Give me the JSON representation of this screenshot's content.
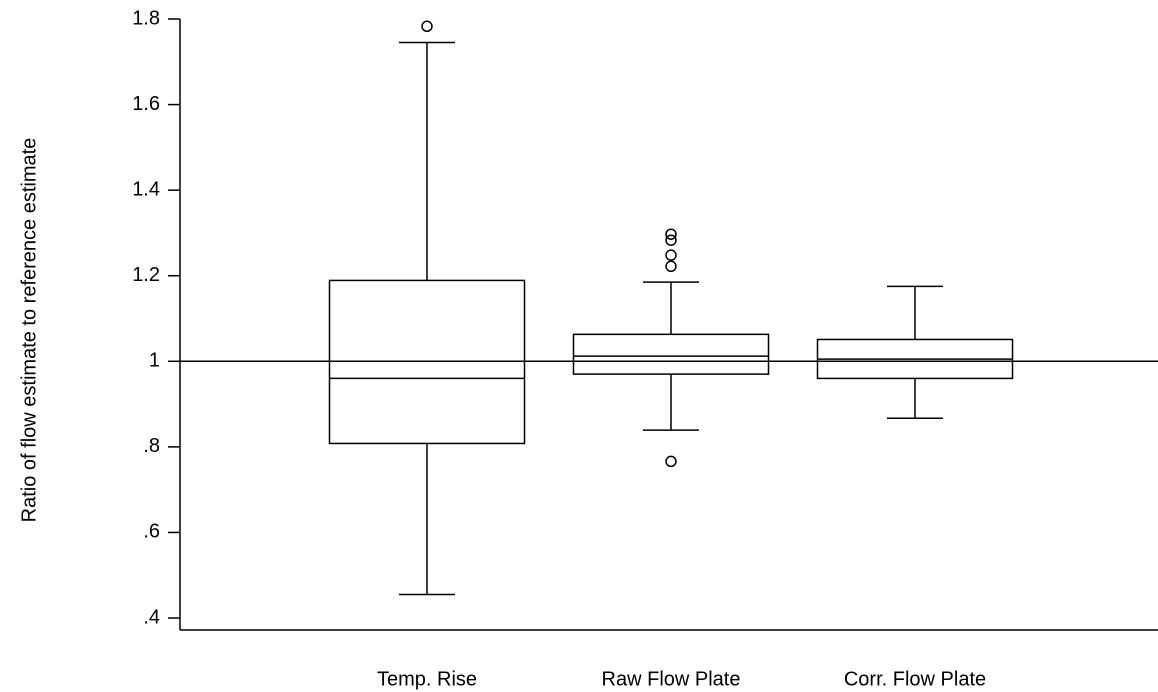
{
  "chart_data": {
    "type": "box",
    "y_label": "Ratio of flow estimate to reference estimate",
    "categories": [
      "Temp. Rise",
      "Raw Flow Plate",
      "Corr. Flow Plate"
    ],
    "boxes": [
      {
        "min": 0.455,
        "q1": 0.808,
        "median": 0.96,
        "q3": 1.189,
        "max": 1.745,
        "outliers": [
          1.783
        ]
      },
      {
        "min": 0.839,
        "q1": 0.97,
        "median": 1.012,
        "q3": 1.063,
        "max": 1.185,
        "outliers": [
          1.297,
          1.283,
          1.248,
          1.222,
          0.766
        ]
      },
      {
        "min": 0.867,
        "q1": 0.96,
        "median": 1.005,
        "q3": 1.051,
        "max": 1.175,
        "outliers": []
      }
    ],
    "reference_line": 1,
    "ylim": [
      0.372,
      1.8
    ],
    "yticks": [
      {
        "value": 0.4,
        "label": ".4"
      },
      {
        "value": 0.6,
        "label": ".6"
      },
      {
        "value": 0.8,
        "label": ".8"
      },
      1,
      1.2,
      1.4,
      1.6,
      1.8
    ],
    "color": "#000000"
  }
}
